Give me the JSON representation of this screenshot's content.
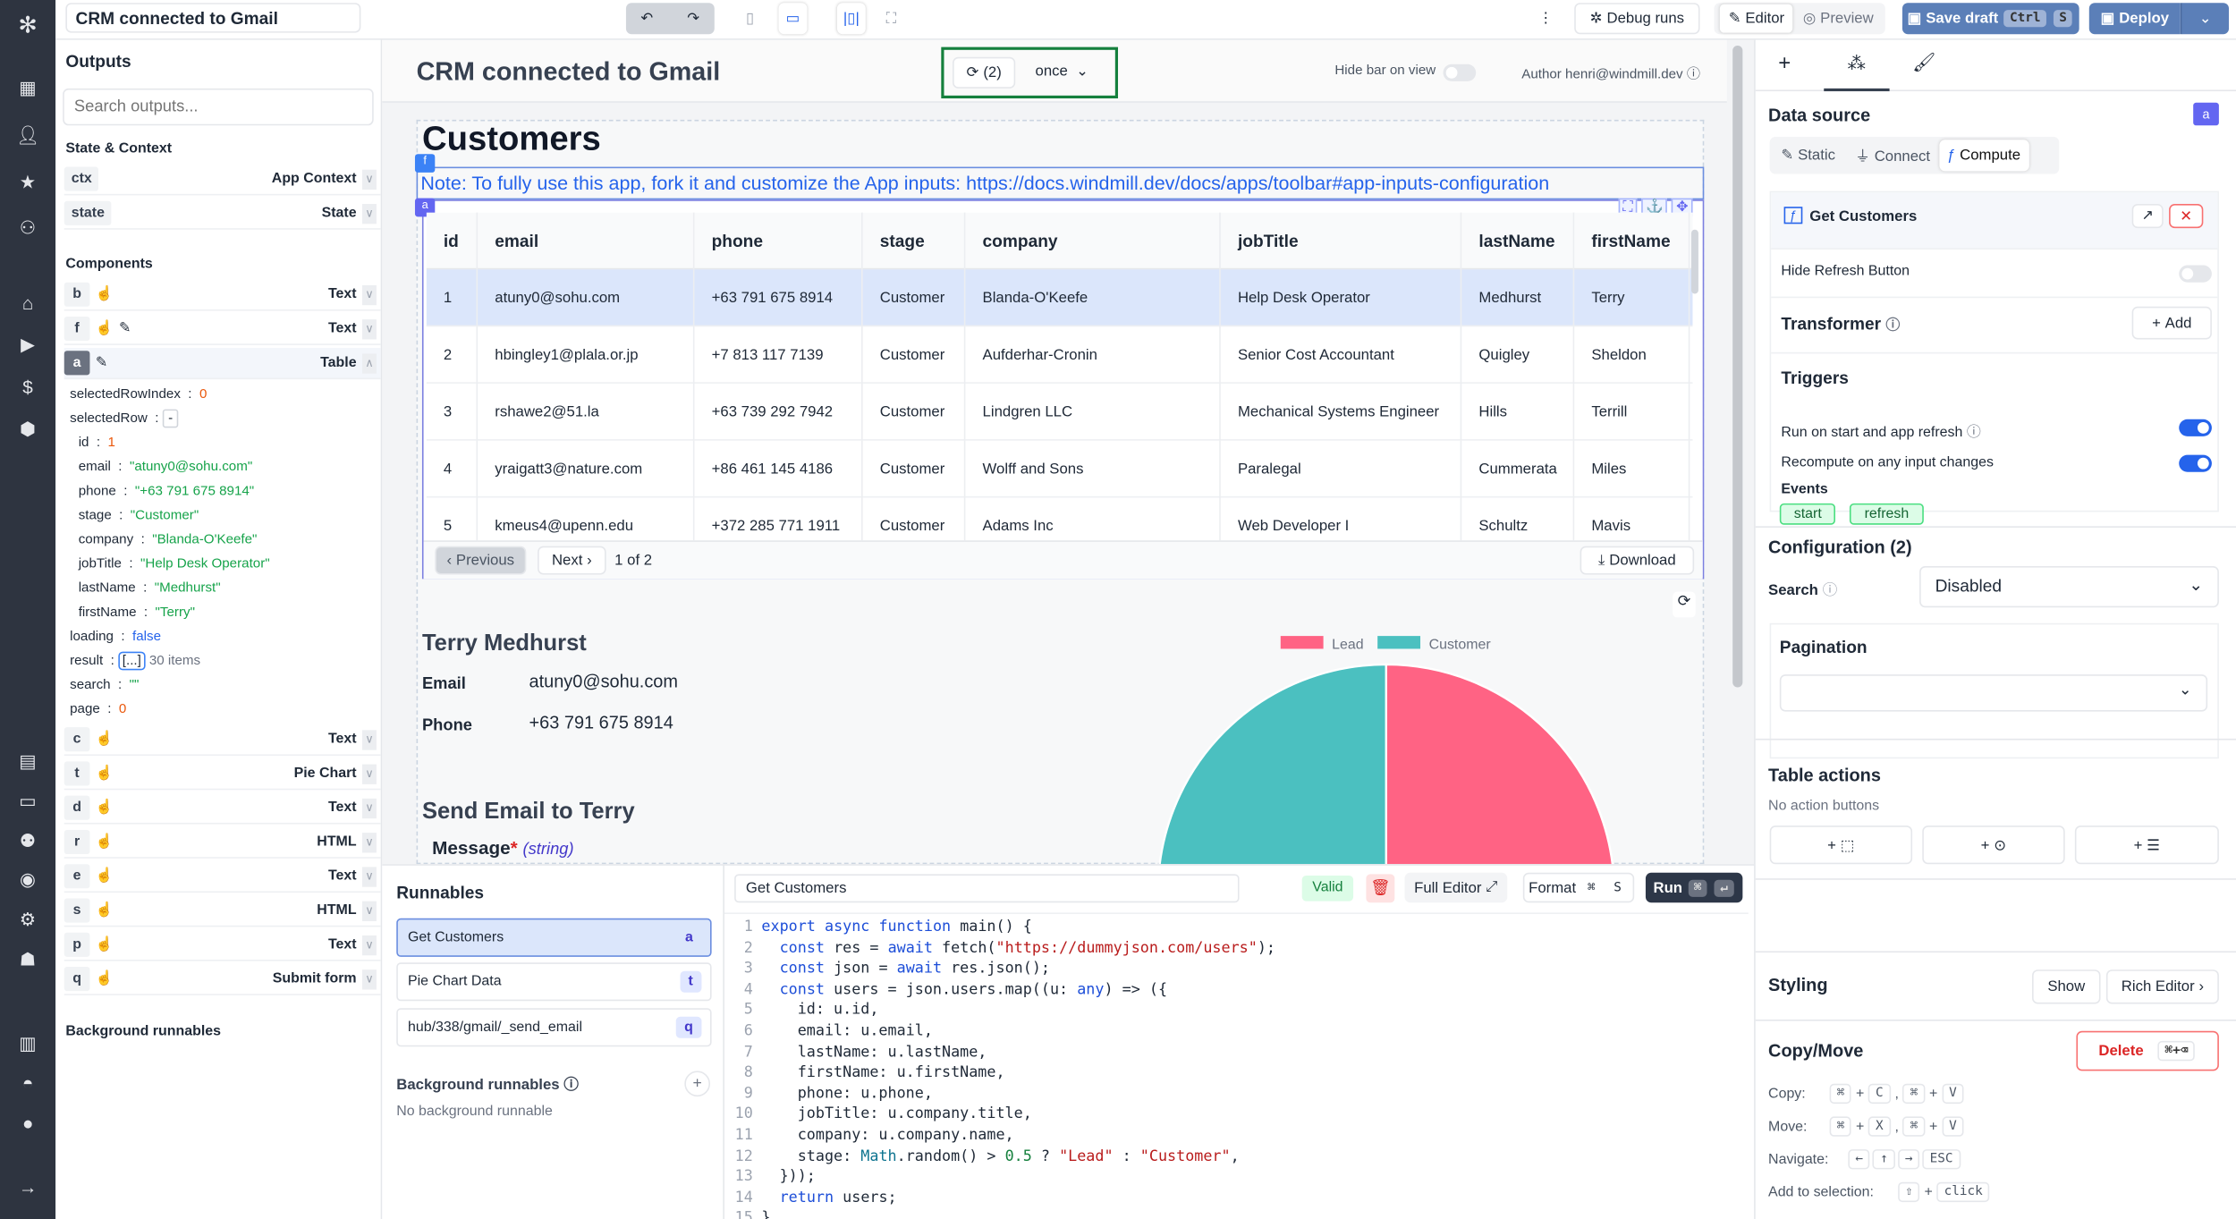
{
  "topbar": {
    "app_title": "CRM connected to Gmail",
    "debug_runs": "Debug runs",
    "editor": "Editor",
    "preview": "Preview",
    "save_draft": "Save draft",
    "save_kbd": [
      "Ctrl",
      "S"
    ],
    "deploy": "Deploy"
  },
  "outputs": {
    "title": "Outputs",
    "search_placeholder": "Search outputs...",
    "state_context_title": "State & Context",
    "state_rows": [
      {
        "id": "ctx",
        "type": "App Context"
      },
      {
        "id": "state",
        "type": "State"
      }
    ],
    "components_title": "Components",
    "components_top": [
      {
        "id": "b",
        "type": "Text"
      },
      {
        "id": "f",
        "type": "Text"
      },
      {
        "id": "a",
        "type": "Table"
      }
    ],
    "table_outputs": {
      "selectedRowIndex": "0",
      "selectedRow_toggle": "-",
      "row": {
        "id": "1",
        "email": "\"atuny0@sohu.com\"",
        "phone": "\"+63 791 675 8914\"",
        "stage": "\"Customer\"",
        "company": "\"Blanda-O'Keefe\"",
        "jobTitle": "\"Help Desk Operator\"",
        "lastName": "\"Medhurst\"",
        "firstName": "\"Terry\""
      },
      "loading": "false",
      "result_btn": "[...]",
      "result_count": "30 items",
      "search": "\"\"",
      "page": "0"
    },
    "components_bottom": [
      {
        "id": "c",
        "type": "Text"
      },
      {
        "id": "t",
        "type": "Pie Chart"
      },
      {
        "id": "d",
        "type": "Text"
      },
      {
        "id": "r",
        "type": "HTML"
      },
      {
        "id": "e",
        "type": "Text"
      },
      {
        "id": "s",
        "type": "HTML"
      },
      {
        "id": "p",
        "type": "Text"
      },
      {
        "id": "q",
        "type": "Submit form"
      }
    ],
    "background_title": "Background runnables"
  },
  "app": {
    "title": "CRM connected to Gmail",
    "refresh_count": "(2)",
    "refresh_mode": "once",
    "hide_bar_label": "Hide bar on view",
    "author": "Author henri@windmill.dev",
    "heading": "Customers",
    "note": "Note: To fully use this app, fork it and customize the App inputs: https://docs.windmill.dev/docs/apps/toolbar#app-inputs-configuration",
    "badges": {
      "note": "f",
      "table": "a"
    },
    "table": {
      "columns": [
        "id",
        "email",
        "phone",
        "stage",
        "company",
        "jobTitle",
        "lastName",
        "firstName"
      ],
      "rows": [
        [
          "1",
          "atuny0@sohu.com",
          "+63 791 675 8914",
          "Customer",
          "Blanda-O'Keefe",
          "Help Desk Operator",
          "Medhurst",
          "Terry"
        ],
        [
          "2",
          "hbingley1@plala.or.jp",
          "+7 813 117 7139",
          "Customer",
          "Aufderhar-Cronin",
          "Senior Cost Accountant",
          "Quigley",
          "Sheldon"
        ],
        [
          "3",
          "rshawe2@51.la",
          "+63 739 292 7942",
          "Customer",
          "Lindgren LLC",
          "Mechanical Systems Engineer",
          "Hills",
          "Terrill"
        ],
        [
          "4",
          "yraigatt3@nature.com",
          "+86 461 145 4186",
          "Customer",
          "Wolff and Sons",
          "Paralegal",
          "Cummerata",
          "Miles"
        ],
        [
          "5",
          "kmeus4@upenn.edu",
          "+372 285 771 1911",
          "Customer",
          "Adams Inc",
          "Web Developer I",
          "Schultz",
          "Mavis"
        ]
      ],
      "previous": "Previous",
      "next": "Next",
      "page_info": "1 of 2",
      "download": "Download"
    },
    "detail": {
      "name": "Terry Medhurst",
      "email_label": "Email",
      "email": "atuny0@sohu.com",
      "phone_label": "Phone",
      "phone": "+63 791 675 8914",
      "send_title": "Send Email to Terry",
      "message_label": "Message",
      "required": "*",
      "message_type": "(string)"
    }
  },
  "chart_data": {
    "type": "pie",
    "categories": [
      "Lead",
      "Customer"
    ],
    "values": [
      15,
      15
    ],
    "colors": [
      "#ff6384",
      "#4bc0c0"
    ],
    "legend": "top"
  },
  "runnables": {
    "title": "Runnables",
    "items": [
      {
        "name": "Get Customers",
        "id": "a"
      },
      {
        "name": "Pie Chart Data",
        "id": "t"
      },
      {
        "name": "hub/338/gmail/_send_email",
        "id": "q"
      }
    ],
    "background_title": "Background runnables",
    "background_empty": "No background runnable"
  },
  "editor": {
    "name": "Get Customers",
    "valid": "Valid",
    "full_editor": "Full Editor",
    "format": "Format",
    "format_kbd": [
      "⌘",
      "S"
    ],
    "run": "Run",
    "code": [
      "export async function main() {",
      "  const res = await fetch(\"https://dummyjson.com/users\");",
      "  const json = await res.json();",
      "  const users = json.users.map((u: any) => ({",
      "    id: u.id,",
      "    email: u.email,",
      "    lastName: u.lastName,",
      "    firstName: u.firstName,",
      "    phone: u.phone,",
      "    jobTitle: u.company.title,",
      "    company: u.company.name,",
      "    stage: Math.random() > 0.5 ? \"Lead\" : \"Customer\",",
      "  }));",
      "  return users;",
      "}"
    ]
  },
  "right": {
    "data_source": "Data source",
    "badge": "a",
    "tabs": [
      "Static",
      "Connect",
      "Compute"
    ],
    "active_tab": "Compute",
    "runnable": "Get Customers",
    "hide_refresh": "Hide Refresh Button",
    "hide_refresh_on": false,
    "transformer": "Transformer",
    "add": "Add",
    "triggers": "Triggers",
    "run_on_start": "Run on start and app refresh",
    "run_on_start_on": true,
    "recompute": "Recompute on any input changes",
    "recompute_on": true,
    "events_label": "Events",
    "events": [
      "start",
      "refresh"
    ],
    "configuration": "Configuration (2)",
    "search_label": "Search",
    "search_value": "Disabled",
    "pagination": "Pagination",
    "pagination_value": "",
    "table_actions": "Table actions",
    "no_actions": "No action buttons",
    "styling": "Styling",
    "show": "Show",
    "rich_editor": "Rich Editor",
    "copy_move": "Copy/Move",
    "delete": "Delete",
    "delete_kbd": "⌘+⌫",
    "shortcuts": [
      {
        "label": "Copy:",
        "keys": [
          "⌘",
          "+",
          "C",
          ",",
          "⌘",
          "+",
          "V"
        ]
      },
      {
        "label": "Move:",
        "keys": [
          "⌘",
          "+",
          "X",
          ",",
          "⌘",
          "+",
          "V"
        ]
      },
      {
        "label": "Navigate:",
        "keys": [
          "←",
          "↑",
          "→",
          "ESC"
        ]
      },
      {
        "label": "Add to selection:",
        "keys": [
          "⇧",
          "+",
          "click"
        ]
      }
    ]
  },
  "colors": {
    "sidebar": "#2e3440",
    "accent": "#3b82f6",
    "selected_row": "#dbeafe",
    "toggle_on": "#2563eb",
    "save_btn": "#5b7fb8"
  }
}
